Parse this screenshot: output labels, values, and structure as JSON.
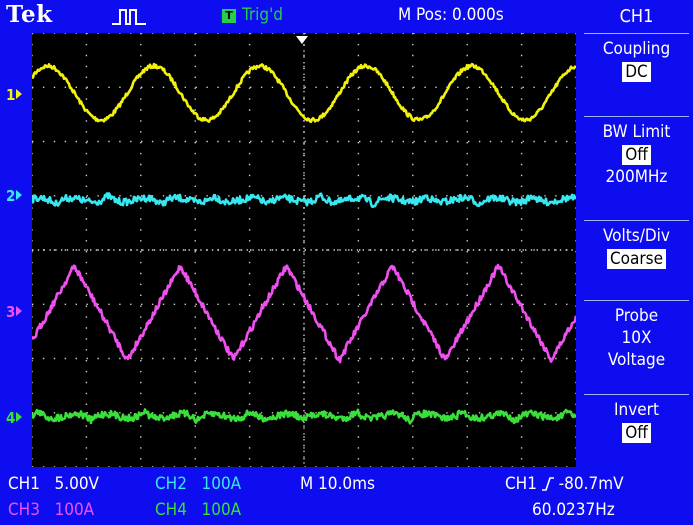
{
  "header": {
    "brand": "Tek",
    "acq_icon": "pulse-waveform-icon",
    "trig_icon_glyph": "T",
    "trig_status": "Trig'd",
    "m_pos": "M Pos: 0.000s"
  },
  "menu": {
    "title": "CH1",
    "coupling": {
      "label": "Coupling",
      "value": "DC"
    },
    "bw_limit": {
      "label": "BW Limit",
      "value": "Off",
      "sub": "200MHz"
    },
    "volts_div": {
      "label": "Volts/Div",
      "value": "Coarse"
    },
    "probe": {
      "label": "Probe",
      "atten": "10X",
      "type": "Voltage"
    },
    "invert": {
      "label": "Invert",
      "value": "Off"
    }
  },
  "channels": [
    {
      "id": "1",
      "name": "CH1",
      "scale": "5.00V",
      "color": "#f2f20a"
    },
    {
      "id": "2",
      "name": "CH2",
      "scale": "100A",
      "color": "#38e8f0"
    },
    {
      "id": "3",
      "name": "CH3",
      "scale": "100A",
      "color": "#f050f0"
    },
    {
      "id": "4",
      "name": "CH4",
      "scale": "100A",
      "color": "#3ae03a"
    }
  ],
  "timebase": "M 10.0ms",
  "trigger": {
    "source": "CH1",
    "level": "-80.7mV",
    "frequency": "60.0237Hz"
  }
}
